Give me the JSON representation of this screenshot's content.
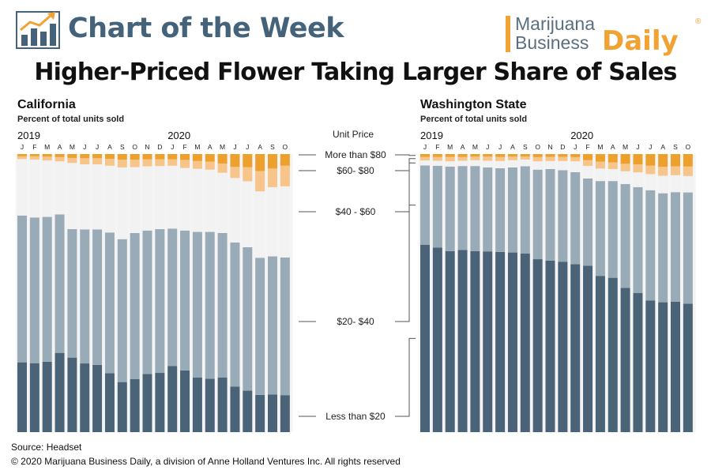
{
  "header": {
    "title": "Chart of the Week",
    "logo_icon": "bar-chart-trend-icon"
  },
  "brand": {
    "line1": "Marijuana",
    "line2": "Business",
    "line3": "Daily",
    "registered": "®"
  },
  "main_title": "Higher-Priced Flower Taking Larger Share of Sales",
  "unit_price_label": "Unit Price",
  "source": "Source: Headset",
  "copyright": "© 2020 Marijuana Business Daily, a division of Anne Holland Ventures Inc. All rights reserved",
  "colors": {
    "lt20": "#4a6376",
    "p20_40": "#9aabb8",
    "p40_60": "#f2f2f2",
    "p60_80": "#f7c489",
    "gt80": "#eea02c",
    "accent": "#44637b",
    "brand": "#f0a233"
  },
  "chart_data": [
    {
      "type": "bar",
      "stacked": true,
      "title": "California",
      "subtitle": "Percent of total units sold",
      "ylim": [
        0,
        100
      ],
      "year_labels": [
        {
          "label": "2019",
          "index": 0
        },
        {
          "label": "2020",
          "index": 12
        }
      ],
      "categories": [
        "J",
        "F",
        "M",
        "A",
        "M",
        "J",
        "J",
        "A",
        "S",
        "O",
        "N",
        "D",
        "J",
        "F",
        "M",
        "A",
        "M",
        "J",
        "J",
        "A",
        "S",
        "O"
      ],
      "series": [
        {
          "name": "Less than $20",
          "values": [
            25.1,
            24.8,
            25.3,
            28.5,
            26.8,
            24.7,
            24.2,
            21.2,
            18.0,
            19.1,
            20.9,
            21.3,
            23.8,
            22.2,
            19.6,
            19.2,
            19.6,
            16.4,
            14.9,
            13.4,
            13.5,
            13.3
          ]
        },
        {
          "name": "$20 - $40",
          "values": [
            52.8,
            52.4,
            52.1,
            49.8,
            46.2,
            48.2,
            48.7,
            50.6,
            51.4,
            52.5,
            51.6,
            51.7,
            49.4,
            50.3,
            52.4,
            52.8,
            52.0,
            51.8,
            51.6,
            49.3,
            49.7,
            49.5
          ]
        },
        {
          "name": "$40 - $60",
          "values": [
            20.3,
            20.8,
            20.3,
            19.1,
            23.8,
            23.4,
            23.4,
            24.0,
            25.8,
            23.7,
            23.1,
            22.7,
            22.6,
            22.5,
            22.7,
            22.4,
            21.7,
            23.2,
            23.7,
            23.9,
            24.9,
            25.6
          ]
        },
        {
          "name": "$60 - $80",
          "values": [
            1.0,
            1.2,
            1.4,
            1.5,
            1.8,
            2.2,
            2.2,
            2.5,
            2.8,
            2.7,
            2.5,
            2.4,
            2.3,
            2.9,
            2.8,
            2.9,
            3.3,
            4.0,
            5.1,
            7.3,
            6.7,
            7.4
          ]
        },
        {
          "name": "More than $80",
          "values": [
            0.8,
            0.8,
            0.9,
            1.1,
            1.4,
            1.5,
            1.5,
            1.7,
            2.0,
            2.0,
            1.9,
            1.9,
            1.9,
            2.1,
            2.5,
            2.7,
            3.4,
            4.6,
            4.7,
            6.1,
            5.2,
            4.2
          ]
        }
      ]
    },
    {
      "type": "bar",
      "stacked": true,
      "title": "Washington State",
      "subtitle": "Percent of total units sold",
      "ylim": [
        0,
        100
      ],
      "year_labels": [
        {
          "label": "2019",
          "index": 0
        },
        {
          "label": "2020",
          "index": 12
        }
      ],
      "categories": [
        "J",
        "F",
        "M",
        "A",
        "M",
        "J",
        "J",
        "A",
        "S",
        "O",
        "N",
        "D",
        "J",
        "F",
        "M",
        "A",
        "M",
        "J",
        "J",
        "A",
        "S",
        "O"
      ],
      "series": [
        {
          "name": "Less than $20",
          "values": [
            67.4,
            66.4,
            65.1,
            65.5,
            65.1,
            65.0,
            64.8,
            64.6,
            64.2,
            62.2,
            61.7,
            61.3,
            60.4,
            59.8,
            56.2,
            55.5,
            51.9,
            50.0,
            47.3,
            46.7,
            46.9,
            46.2
          ]
        },
        {
          "name": "$20 - $40",
          "values": [
            28.5,
            29.4,
            30.4,
            30.2,
            30.6,
            30.2,
            30.1,
            30.6,
            31.4,
            32.2,
            32.9,
            32.9,
            33.1,
            31.4,
            34.1,
            34.8,
            37.3,
            38.1,
            39.7,
            39.2,
            39.4,
            40.0
          ]
        },
        {
          "name": "$40 - $60",
          "values": [
            1.8,
            1.8,
            1.9,
            1.9,
            2.1,
            2.4,
            2.6,
            2.6,
            2.4,
            3.0,
            2.9,
            3.3,
            3.9,
            4.5,
            4.5,
            4.3,
            4.6,
            5.3,
            5.8,
            6.3,
            6.1,
            5.9
          ]
        },
        {
          "name": "$60 - $80",
          "values": [
            1.3,
            1.4,
            1.6,
            1.4,
            1.3,
            1.5,
            1.5,
            1.3,
            1.1,
            1.5,
            1.5,
            1.5,
            1.5,
            2.1,
            2.5,
            2.4,
            2.7,
            2.9,
            3.0,
            3.2,
            3.2,
            3.4
          ]
        },
        {
          "name": "More than $80",
          "values": [
            1.0,
            1.0,
            1.0,
            1.0,
            0.9,
            0.9,
            1.0,
            0.9,
            0.9,
            1.1,
            1.0,
            1.0,
            1.1,
            2.2,
            2.7,
            3.0,
            3.5,
            3.7,
            4.2,
            4.6,
            4.4,
            4.5
          ]
        }
      ]
    }
  ]
}
